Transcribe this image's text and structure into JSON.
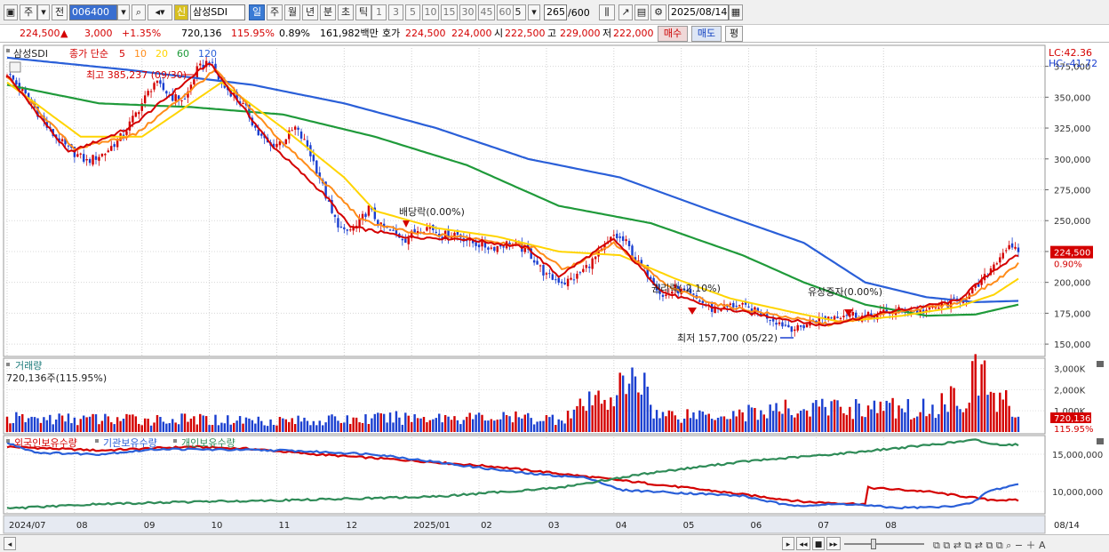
{
  "toolbar": {
    "market": "주",
    "prev_label": "전",
    "stock_code": "006400",
    "stock_badge": "신",
    "stock_name": "삼성SDI",
    "periods": [
      "일",
      "주",
      "월",
      "년",
      "분",
      "초",
      "틱"
    ],
    "selected_period": "일",
    "intervals": [
      "1",
      "3",
      "5",
      "10",
      "15",
      "30",
      "45",
      "60"
    ],
    "interval_value": "5",
    "count": "265",
    "count_total": "/600",
    "date": "2025/08/14"
  },
  "info": {
    "price": "224,500",
    "change_arrow": "▲",
    "change": "3,000",
    "change_pct": "+1.35%",
    "volume": "720,136",
    "vol_ratio": "115.95%",
    "turnover": "0.89%",
    "amount": "161,982백만",
    "hoga_label": "호가",
    "hoga_ask": "224,500",
    "hoga_bid": "224,000",
    "open_label": "시",
    "open": "222,500",
    "high_label": "고",
    "high": "229,000",
    "low_label": "저",
    "low": "222,000",
    "buy_label": "매수",
    "sell_label": "매도",
    "flat_label": "평"
  },
  "price_panel": {
    "legend_stock": "삼성SDI",
    "legend_type": "종가 단순",
    "ma_labels": [
      "5",
      "10",
      "20",
      "60",
      "120"
    ],
    "ma_colors": [
      "#d40000",
      "#ff8c1a",
      "#ffd400",
      "#1f9a3a",
      "#2a5fd8"
    ],
    "lc": "LC:42.36",
    "hc": "HC:-41.72",
    "high_note": "최고 385,237 (09/30)",
    "low_note": "최저 157,700 (05/22)",
    "event_dividend": "배당락(0.00%)",
    "event_rights": "권리락(-2.10%)",
    "event_offering": "유상증자(0.00%)",
    "last_price": "224,500",
    "last_pct": "0.90%"
  },
  "volume_panel": {
    "title": "거래량",
    "value_text": "720,136주(115.95%)",
    "last_value": "720,136",
    "last_pct": "115.95%"
  },
  "holding_panel": {
    "labels": [
      "외국인보유수량",
      "기관보유수량",
      "개인보유수량"
    ],
    "colors": [
      "#d40000",
      "#2a5fd8",
      "#2e8b57"
    ]
  },
  "x_ticks": [
    "2024/07",
    "08",
    "09",
    "10",
    "11",
    "12",
    "2025/01",
    "02",
    "03",
    "04",
    "05",
    "06",
    "07",
    "08"
  ],
  "right_axis_date": "08/14",
  "chart_data": {
    "type": "line",
    "price_axis": {
      "ticks": [
        150000,
        175000,
        200000,
        225000,
        250000,
        275000,
        300000,
        325000,
        350000,
        375000
      ],
      "labels": [
        "150,000",
        "175,000",
        "200,000",
        "225,000",
        "250,000",
        "275,000",
        "300,000",
        "325,000",
        "350,000",
        "375,000"
      ],
      "ylim": [
        140000,
        392000
      ]
    },
    "volume_axis": {
      "ticks": [
        1000000,
        2000000,
        3000000
      ],
      "labels": [
        "1,000K",
        "2,000K",
        "3,000K"
      ],
      "ylim": [
        0,
        3400000
      ]
    },
    "holding_axis": {
      "ticks": [
        10000000,
        15000000
      ],
      "labels": [
        "10,000,000",
        "15,000,000"
      ],
      "ylim": [
        7000000,
        17500000
      ]
    },
    "price_anchors": [
      [
        0,
        370000
      ],
      [
        8,
        345000
      ],
      [
        14,
        322000
      ],
      [
        20,
        308000
      ],
      [
        26,
        298000
      ],
      [
        32,
        305000
      ],
      [
        38,
        320000
      ],
      [
        44,
        345000
      ],
      [
        48,
        362000
      ],
      [
        54,
        350000
      ],
      [
        58,
        348000
      ],
      [
        62,
        372000
      ],
      [
        66,
        380000
      ],
      [
        70,
        360000
      ],
      [
        74,
        352000
      ],
      [
        78,
        340000
      ],
      [
        82,
        320000
      ],
      [
        86,
        310000
      ],
      [
        90,
        315000
      ],
      [
        94,
        325000
      ],
      [
        98,
        310000
      ],
      [
        102,
        285000
      ],
      [
        106,
        255000
      ],
      [
        110,
        240000
      ],
      [
        114,
        245000
      ],
      [
        118,
        260000
      ],
      [
        122,
        245000
      ],
      [
        126,
        240000
      ],
      [
        130,
        235000
      ],
      [
        134,
        243000
      ],
      [
        138,
        245000
      ],
      [
        142,
        238000
      ],
      [
        146,
        240000
      ],
      [
        152,
        232000
      ],
      [
        158,
        228000
      ],
      [
        164,
        232000
      ],
      [
        170,
        225000
      ],
      [
        176,
        205000
      ],
      [
        182,
        200000
      ],
      [
        186,
        205000
      ],
      [
        190,
        215000
      ],
      [
        194,
        225000
      ],
      [
        198,
        238000
      ],
      [
        202,
        232000
      ],
      [
        206,
        215000
      ],
      [
        210,
        205000
      ],
      [
        214,
        188000
      ],
      [
        218,
        195000
      ],
      [
        222,
        190000
      ],
      [
        226,
        185000
      ],
      [
        230,
        178000
      ],
      [
        234,
        180000
      ],
      [
        238,
        182000
      ],
      [
        242,
        178000
      ],
      [
        246,
        175000
      ],
      [
        250,
        170000
      ],
      [
        254,
        165000
      ],
      [
        258,
        162000
      ],
      [
        262,
        168000
      ],
      [
        268,
        172000
      ],
      [
        274,
        175000
      ],
      [
        280,
        172000
      ],
      [
        286,
        175000
      ],
      [
        292,
        178000
      ],
      [
        298,
        176000
      ],
      [
        304,
        180000
      ],
      [
        310,
        185000
      ],
      [
        314,
        190000
      ],
      [
        318,
        200000
      ],
      [
        322,
        215000
      ],
      [
        326,
        228000
      ],
      [
        330,
        224500
      ]
    ],
    "ma5_anchors": [
      [
        0,
        368000
      ],
      [
        20,
        305000
      ],
      [
        40,
        325000
      ],
      [
        66,
        378000
      ],
      [
        86,
        312000
      ],
      [
        104,
        270000
      ],
      [
        112,
        245000
      ],
      [
        130,
        237000
      ],
      [
        150,
        235000
      ],
      [
        170,
        228000
      ],
      [
        180,
        205000
      ],
      [
        198,
        235000
      ],
      [
        214,
        192000
      ],
      [
        230,
        180000
      ],
      [
        250,
        172000
      ],
      [
        266,
        165000
      ],
      [
        290,
        177000
      ],
      [
        310,
        185000
      ],
      [
        322,
        210000
      ],
      [
        330,
        222000
      ]
    ],
    "ma10_anchors": [
      [
        0,
        366000
      ],
      [
        22,
        308000
      ],
      [
        42,
        320000
      ],
      [
        68,
        372000
      ],
      [
        88,
        318000
      ],
      [
        106,
        275000
      ],
      [
        116,
        250000
      ],
      [
        132,
        240000
      ],
      [
        152,
        236000
      ],
      [
        172,
        228000
      ],
      [
        182,
        210000
      ],
      [
        198,
        232000
      ],
      [
        216,
        196000
      ],
      [
        232,
        182000
      ],
      [
        252,
        173000
      ],
      [
        268,
        166000
      ],
      [
        290,
        176000
      ],
      [
        310,
        183000
      ],
      [
        322,
        200000
      ],
      [
        330,
        215000
      ]
    ],
    "ma20_anchors": [
      [
        0,
        362000
      ],
      [
        24,
        318000
      ],
      [
        44,
        318000
      ],
      [
        70,
        362000
      ],
      [
        90,
        325000
      ],
      [
        110,
        285000
      ],
      [
        120,
        258000
      ],
      [
        140,
        244000
      ],
      [
        160,
        237000
      ],
      [
        180,
        225000
      ],
      [
        200,
        222000
      ],
      [
        218,
        203000
      ],
      [
        236,
        187000
      ],
      [
        256,
        176000
      ],
      [
        272,
        168000
      ],
      [
        292,
        173000
      ],
      [
        310,
        180000
      ],
      [
        322,
        190000
      ],
      [
        330,
        203000
      ]
    ],
    "ma60_anchors": [
      [
        0,
        360000
      ],
      [
        30,
        345000
      ],
      [
        60,
        342000
      ],
      [
        90,
        336000
      ],
      [
        120,
        318000
      ],
      [
        150,
        295000
      ],
      [
        180,
        262000
      ],
      [
        210,
        248000
      ],
      [
        240,
        222000
      ],
      [
        260,
        200000
      ],
      [
        280,
        182000
      ],
      [
        300,
        173000
      ],
      [
        316,
        174000
      ],
      [
        330,
        182000
      ]
    ],
    "ma120_anchors": [
      [
        0,
        382000
      ],
      [
        40,
        372000
      ],
      [
        80,
        360000
      ],
      [
        110,
        345000
      ],
      [
        140,
        325000
      ],
      [
        170,
        300000
      ],
      [
        200,
        285000
      ],
      [
        230,
        258000
      ],
      [
        260,
        232000
      ],
      [
        280,
        200000
      ],
      [
        300,
        188000
      ],
      [
        316,
        184000
      ],
      [
        330,
        185000
      ]
    ],
    "volume_anchors": [
      [
        0,
        700000
      ],
      [
        60,
        650000
      ],
      [
        100,
        600000
      ],
      [
        140,
        800000
      ],
      [
        180,
        700000
      ],
      [
        208,
        2800000
      ],
      [
        212,
        900000
      ],
      [
        240,
        1000000
      ],
      [
        270,
        1300000
      ],
      [
        300,
        1200000
      ],
      [
        312,
        2000000
      ],
      [
        318,
        3200000
      ],
      [
        322,
        1800000
      ],
      [
        326,
        1500000
      ],
      [
        330,
        720136
      ]
    ],
    "foreign_anchors": [
      [
        0,
        16000000
      ],
      [
        30,
        15500000
      ],
      [
        60,
        16000000
      ],
      [
        80,
        15700000
      ],
      [
        100,
        15000000
      ],
      [
        130,
        14200000
      ],
      [
        160,
        13300000
      ],
      [
        200,
        11500000
      ],
      [
        230,
        10100000
      ],
      [
        260,
        8600000
      ],
      [
        280,
        8300000
      ],
      [
        281,
        10500000
      ],
      [
        300,
        10000000
      ],
      [
        320,
        8900000
      ],
      [
        330,
        8800000
      ]
    ],
    "inst_anchors": [
      [
        0,
        16500000
      ],
      [
        10,
        15200000
      ],
      [
        30,
        15000000
      ],
      [
        50,
        15700000
      ],
      [
        90,
        15500000
      ],
      [
        120,
        15000000
      ],
      [
        150,
        13400000
      ],
      [
        170,
        12400000
      ],
      [
        190,
        11800000
      ],
      [
        200,
        10200000
      ],
      [
        220,
        9800000
      ],
      [
        240,
        9400000
      ],
      [
        255,
        8100000
      ],
      [
        275,
        8300000
      ],
      [
        290,
        7800000
      ],
      [
        305,
        7900000
      ],
      [
        315,
        8400000
      ],
      [
        320,
        10000000
      ],
      [
        330,
        11000000
      ]
    ],
    "indiv_anchors": [
      [
        0,
        7700000
      ],
      [
        30,
        8300000
      ],
      [
        60,
        8600000
      ],
      [
        100,
        8900000
      ],
      [
        140,
        9300000
      ],
      [
        180,
        10500000
      ],
      [
        210,
        12500000
      ],
      [
        240,
        14000000
      ],
      [
        270,
        15000000
      ],
      [
        300,
        16200000
      ],
      [
        316,
        16900000
      ],
      [
        322,
        16300000
      ],
      [
        330,
        16300000
      ]
    ]
  }
}
